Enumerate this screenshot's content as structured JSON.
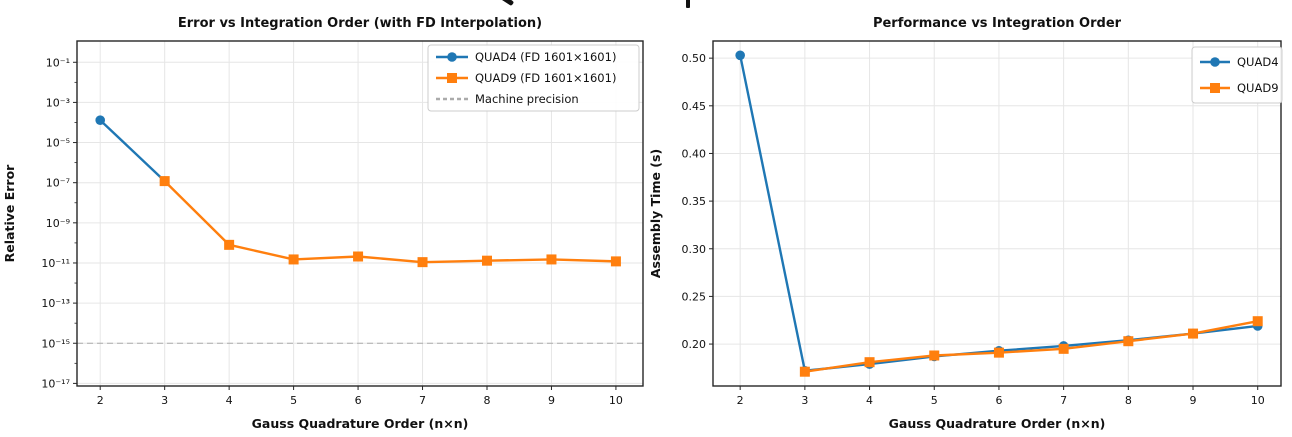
{
  "figure": {
    "background": "#ffffff",
    "cropped_suptitle_fragments": [
      "glyph-descender-left",
      "glyph-descender-right"
    ]
  },
  "colors": {
    "quad4_blue": "#1f77b4",
    "quad9_orange": "#ff7f0e",
    "machine_precision_gray": "#ababab",
    "grid": "#e6e6e6",
    "spine": "#262626",
    "text": "#111111",
    "legend_border": "#cccccc",
    "legend_bg": "#ffffff"
  },
  "chart_data": [
    {
      "type": "line",
      "title": "Error vs Integration Order (with FD Interpolation)",
      "xlabel": "Gauss Quadrature Order (n×n)",
      "ylabel": "Relative Error",
      "yscale": "log",
      "grid": true,
      "legend_position": "upper right",
      "xlim": [
        1.64,
        10.42
      ],
      "ylim_exponents": [
        -17.13,
        0.06
      ],
      "x_ticks": [
        2,
        3,
        4,
        5,
        6,
        7,
        8,
        9,
        10
      ],
      "x_tick_labels": [
        "2",
        "3",
        "4",
        "5",
        "6",
        "7",
        "8",
        "9",
        "10"
      ],
      "y_tick_exponents": [
        -1,
        -3,
        -5,
        -7,
        -9,
        -11,
        -13,
        -15,
        -17
      ],
      "y_tick_labels": [
        "10⁻¹",
        "10⁻³",
        "10⁻⁵",
        "10⁻⁷",
        "10⁻⁹",
        "10⁻¹¹",
        "10⁻¹³",
        "10⁻¹⁵",
        "10⁻¹⁷"
      ],
      "y_minor_tick_exponents": [
        -2,
        -4,
        -6,
        -8,
        -10,
        -12,
        -14,
        -16
      ],
      "series": [
        {
          "name": "QUAD4 (FD 1601×1601)",
          "color": "#1f77b4",
          "marker": "circle",
          "x": [
            2,
            3
          ],
          "y": [
            0.00013,
            1.2e-07
          ]
        },
        {
          "name": "QUAD9 (FD 1601×1601)",
          "color": "#ff7f0e",
          "marker": "square",
          "x": [
            3,
            4,
            5,
            6,
            7,
            8,
            9,
            10
          ],
          "y": [
            1.2e-07,
            8e-11,
            1.5e-11,
            2.1e-11,
            1.1e-11,
            1.3e-11,
            1.5e-11,
            1.2e-11
          ]
        }
      ],
      "reference_line": {
        "label": "Machine precision",
        "y": 1e-15,
        "style": "dashed",
        "color": "#ababab"
      }
    },
    {
      "type": "line",
      "title": "Performance vs Integration Order",
      "xlabel": "Gauss Quadrature Order (n×n)",
      "ylabel": "Assembly Time (s)",
      "yscale": "linear",
      "grid": true,
      "legend_position": "upper right",
      "xlim": [
        1.58,
        10.36
      ],
      "ylim": [
        0.156,
        0.518
      ],
      "x_ticks": [
        2,
        3,
        4,
        5,
        6,
        7,
        8,
        9,
        10
      ],
      "x_tick_labels": [
        "2",
        "3",
        "4",
        "5",
        "6",
        "7",
        "8",
        "9",
        "10"
      ],
      "y_ticks": [
        0.2,
        0.25,
        0.3,
        0.35,
        0.4,
        0.45,
        0.5
      ],
      "y_tick_labels": [
        "0.20",
        "0.25",
        "0.30",
        "0.35",
        "0.40",
        "0.45",
        "0.50"
      ],
      "series": [
        {
          "name": "QUAD4",
          "color": "#1f77b4",
          "marker": "circle",
          "x": [
            2,
            3,
            4,
            5,
            6,
            7,
            8,
            9,
            10
          ],
          "y": [
            0.503,
            0.172,
            0.179,
            0.187,
            0.193,
            0.198,
            0.204,
            0.211,
            0.219
          ]
        },
        {
          "name": "QUAD9",
          "color": "#ff7f0e",
          "marker": "square",
          "x": [
            3,
            4,
            5,
            6,
            7,
            8,
            9,
            10
          ],
          "y": [
            0.171,
            0.181,
            0.188,
            0.191,
            0.195,
            0.203,
            0.211,
            0.224
          ]
        }
      ]
    }
  ]
}
